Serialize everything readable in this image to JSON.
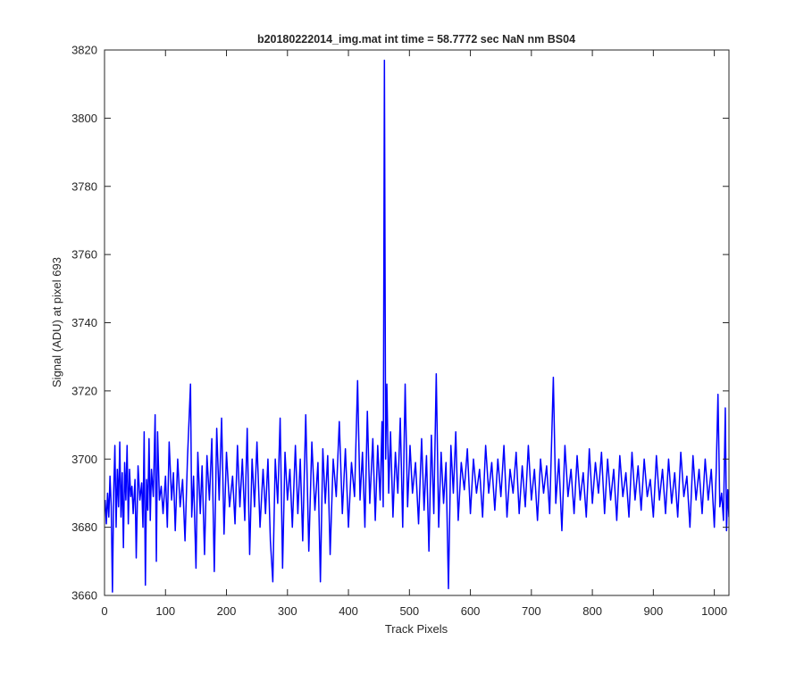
{
  "chart_data": {
    "type": "line",
    "title": "b20180222014_img.mat int time = 58.7772 sec  NaN nm BS04",
    "xlabel": "Track Pixels",
    "ylabel": "Signal (ADU) at pixel 693",
    "xlim": [
      0,
      1024
    ],
    "ylim": [
      3660,
      3820
    ],
    "xticks": [
      0,
      100,
      200,
      300,
      400,
      500,
      600,
      700,
      800,
      900,
      1000
    ],
    "yticks": [
      3660,
      3680,
      3700,
      3720,
      3740,
      3760,
      3780,
      3800,
      3820
    ],
    "grid": false,
    "legend": "none",
    "series": [
      {
        "color": "#0000ff",
        "points": [
          [
            1,
            3688
          ],
          [
            3,
            3681
          ],
          [
            5,
            3690
          ],
          [
            7,
            3683
          ],
          [
            9,
            3695
          ],
          [
            11,
            3686
          ],
          [
            13,
            3661
          ],
          [
            15,
            3690
          ],
          [
            17,
            3704
          ],
          [
            19,
            3680
          ],
          [
            21,
            3697
          ],
          [
            23,
            3686
          ],
          [
            25,
            3705
          ],
          [
            27,
            3683
          ],
          [
            29,
            3696
          ],
          [
            31,
            3674
          ],
          [
            33,
            3699
          ],
          [
            35,
            3688
          ],
          [
            37,
            3704
          ],
          [
            39,
            3681
          ],
          [
            41,
            3697
          ],
          [
            43,
            3689
          ],
          [
            45,
            3692
          ],
          [
            47,
            3684
          ],
          [
            50,
            3694
          ],
          [
            52,
            3671
          ],
          [
            55,
            3698
          ],
          [
            58,
            3688
          ],
          [
            61,
            3693
          ],
          [
            63,
            3680
          ],
          [
            65,
            3708
          ],
          [
            67,
            3663
          ],
          [
            69,
            3694
          ],
          [
            71,
            3685
          ],
          [
            73,
            3706
          ],
          [
            75,
            3682
          ],
          [
            77,
            3697
          ],
          [
            80,
            3689
          ],
          [
            83,
            3713
          ],
          [
            85,
            3670
          ],
          [
            87,
            3708
          ],
          [
            90,
            3688
          ],
          [
            93,
            3692
          ],
          [
            96,
            3684
          ],
          [
            100,
            3695
          ],
          [
            103,
            3680
          ],
          [
            106,
            3705
          ],
          [
            110,
            3688
          ],
          [
            113,
            3696
          ],
          [
            116,
            3679
          ],
          [
            120,
            3700
          ],
          [
            124,
            3686
          ],
          [
            128,
            3694
          ],
          [
            132,
            3676
          ],
          [
            136,
            3700
          ],
          [
            141,
            3722
          ],
          [
            143,
            3683
          ],
          [
            146,
            3695
          ],
          [
            150,
            3668
          ],
          [
            153,
            3702
          ],
          [
            157,
            3684
          ],
          [
            160,
            3698
          ],
          [
            164,
            3672
          ],
          [
            168,
            3701
          ],
          [
            172,
            3688
          ],
          [
            176,
            3706
          ],
          [
            180,
            3667
          ],
          [
            184,
            3709
          ],
          [
            188,
            3688
          ],
          [
            192,
            3712
          ],
          [
            196,
            3678
          ],
          [
            200,
            3702
          ],
          [
            205,
            3686
          ],
          [
            210,
            3695
          ],
          [
            214,
            3681
          ],
          [
            218,
            3704
          ],
          [
            222,
            3686
          ],
          [
            226,
            3700
          ],
          [
            230,
            3682
          ],
          [
            234,
            3709
          ],
          [
            238,
            3672
          ],
          [
            242,
            3700
          ],
          [
            246,
            3686
          ],
          [
            250,
            3705
          ],
          [
            255,
            3680
          ],
          [
            260,
            3697
          ],
          [
            264,
            3684
          ],
          [
            268,
            3700
          ],
          [
            272,
            3676
          ],
          [
            276,
            3664
          ],
          [
            280,
            3700
          ],
          [
            284,
            3687
          ],
          [
            288,
            3712
          ],
          [
            292,
            3668
          ],
          [
            296,
            3702
          ],
          [
            300,
            3688
          ],
          [
            304,
            3697
          ],
          [
            308,
            3680
          ],
          [
            313,
            3704
          ],
          [
            317,
            3684
          ],
          [
            321,
            3700
          ],
          [
            325,
            3676
          ],
          [
            330,
            3713
          ],
          [
            335,
            3673
          ],
          [
            340,
            3705
          ],
          [
            345,
            3685
          ],
          [
            350,
            3699
          ],
          [
            354,
            3664
          ],
          [
            358,
            3703
          ],
          [
            362,
            3687
          ],
          [
            366,
            3701
          ],
          [
            370,
            3672
          ],
          [
            375,
            3700
          ],
          [
            380,
            3689
          ],
          [
            385,
            3711
          ],
          [
            390,
            3684
          ],
          [
            395,
            3703
          ],
          [
            400,
            3680
          ],
          [
            405,
            3699
          ],
          [
            410,
            3689
          ],
          [
            415,
            3723
          ],
          [
            419,
            3688
          ],
          [
            423,
            3702
          ],
          [
            427,
            3680
          ],
          [
            431,
            3714
          ],
          [
            435,
            3687
          ],
          [
            440,
            3706
          ],
          [
            444,
            3682
          ],
          [
            448,
            3704
          ],
          [
            452,
            3688
          ],
          [
            455,
            3711
          ],
          [
            457,
            3686
          ],
          [
            459,
            3817
          ],
          [
            461,
            3700
          ],
          [
            463,
            3722
          ],
          [
            466,
            3690
          ],
          [
            469,
            3708
          ],
          [
            473,
            3683
          ],
          [
            477,
            3702
          ],
          [
            481,
            3690
          ],
          [
            485,
            3712
          ],
          [
            489,
            3680
          ],
          [
            493,
            3722
          ],
          [
            497,
            3686
          ],
          [
            501,
            3704
          ],
          [
            505,
            3690
          ],
          [
            510,
            3699
          ],
          [
            515,
            3681
          ],
          [
            520,
            3706
          ],
          [
            524,
            3685
          ],
          [
            528,
            3701
          ],
          [
            532,
            3673
          ],
          [
            536,
            3707
          ],
          [
            540,
            3684
          ],
          [
            544,
            3725
          ],
          [
            548,
            3680
          ],
          [
            552,
            3702
          ],
          [
            556,
            3687
          ],
          [
            560,
            3699
          ],
          [
            564,
            3662
          ],
          [
            568,
            3704
          ],
          [
            572,
            3690
          ],
          [
            576,
            3708
          ],
          [
            580,
            3682
          ],
          [
            585,
            3699
          ],
          [
            590,
            3691
          ],
          [
            595,
            3703
          ],
          [
            600,
            3684
          ],
          [
            605,
            3700
          ],
          [
            610,
            3690
          ],
          [
            615,
            3697
          ],
          [
            620,
            3683
          ],
          [
            625,
            3704
          ],
          [
            630,
            3690
          ],
          [
            635,
            3699
          ],
          [
            640,
            3685
          ],
          [
            645,
            3700
          ],
          [
            650,
            3689
          ],
          [
            655,
            3704
          ],
          [
            660,
            3683
          ],
          [
            665,
            3697
          ],
          [
            670,
            3690
          ],
          [
            675,
            3702
          ],
          [
            680,
            3684
          ],
          [
            685,
            3698
          ],
          [
            690,
            3686
          ],
          [
            695,
            3704
          ],
          [
            700,
            3688
          ],
          [
            705,
            3697
          ],
          [
            710,
            3682
          ],
          [
            715,
            3700
          ],
          [
            720,
            3690
          ],
          [
            725,
            3698
          ],
          [
            730,
            3684
          ],
          [
            736,
            3724
          ],
          [
            740,
            3687
          ],
          [
            745,
            3700
          ],
          [
            750,
            3679
          ],
          [
            755,
            3704
          ],
          [
            760,
            3689
          ],
          [
            765,
            3697
          ],
          [
            770,
            3684
          ],
          [
            775,
            3701
          ],
          [
            780,
            3688
          ],
          [
            785,
            3696
          ],
          [
            790,
            3683
          ],
          [
            795,
            3703
          ],
          [
            800,
            3687
          ],
          [
            805,
            3699
          ],
          [
            810,
            3690
          ],
          [
            815,
            3702
          ],
          [
            820,
            3684
          ],
          [
            825,
            3700
          ],
          [
            830,
            3688
          ],
          [
            835,
            3697
          ],
          [
            840,
            3682
          ],
          [
            845,
            3701
          ],
          [
            850,
            3689
          ],
          [
            855,
            3696
          ],
          [
            860,
            3683
          ],
          [
            865,
            3702
          ],
          [
            870,
            3688
          ],
          [
            875,
            3698
          ],
          [
            880,
            3685
          ],
          [
            885,
            3700
          ],
          [
            890,
            3689
          ],
          [
            895,
            3694
          ],
          [
            900,
            3683
          ],
          [
            905,
            3701
          ],
          [
            910,
            3688
          ],
          [
            915,
            3697
          ],
          [
            920,
            3684
          ],
          [
            925,
            3700
          ],
          [
            930,
            3687
          ],
          [
            935,
            3696
          ],
          [
            940,
            3683
          ],
          [
            945,
            3702
          ],
          [
            950,
            3689
          ],
          [
            955,
            3695
          ],
          [
            960,
            3680
          ],
          [
            965,
            3701
          ],
          [
            970,
            3688
          ],
          [
            975,
            3697
          ],
          [
            980,
            3684
          ],
          [
            985,
            3700
          ],
          [
            990,
            3688
          ],
          [
            995,
            3697
          ],
          [
            1000,
            3680
          ],
          [
            1003,
            3696
          ],
          [
            1006,
            3719
          ],
          [
            1009,
            3686
          ],
          [
            1012,
            3690
          ],
          [
            1015,
            3682
          ],
          [
            1018,
            3715
          ],
          [
            1020,
            3679
          ],
          [
            1022,
            3691
          ],
          [
            1024,
            3683
          ]
        ]
      }
    ]
  }
}
